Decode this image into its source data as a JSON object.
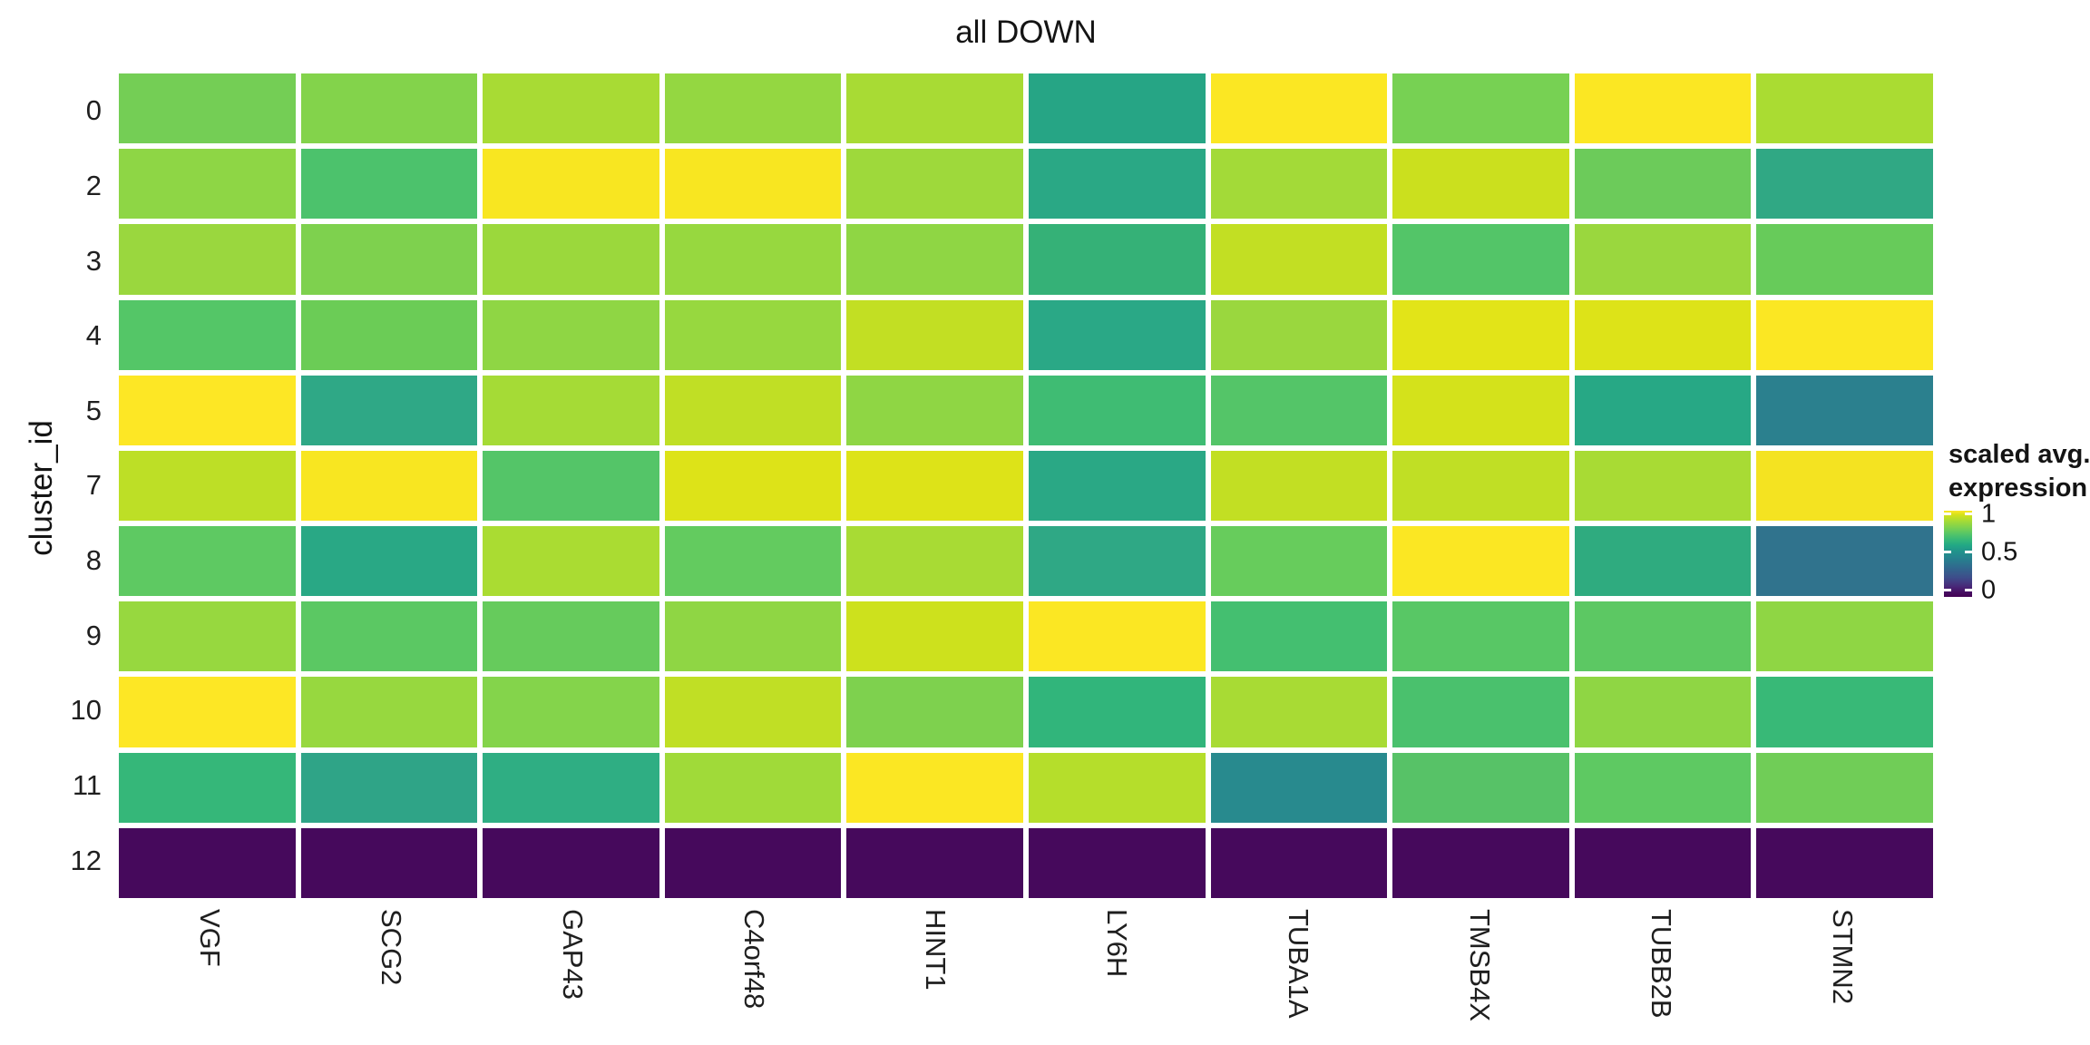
{
  "chart_data": {
    "type": "heatmap",
    "title": "all DOWN",
    "xlabel": "",
    "ylabel": "cluster_id",
    "x_tick_labels": [
      "VGF",
      "SCG2",
      "GAP43",
      "C4orf48",
      "HINT1",
      "LY6H",
      "TUBA1A",
      "TMSB4X",
      "TUBB2B",
      "STMN2"
    ],
    "y_tick_labels": [
      "0",
      "2",
      "3",
      "4",
      "5",
      "7",
      "8",
      "9",
      "10",
      "11",
      "12"
    ],
    "legend": {
      "title_line1": "scaled avg.",
      "title_line2": "expression",
      "tick_labels": [
        "1",
        "0.5",
        "0"
      ],
      "colormap": "viridis",
      "range": [
        0,
        1
      ],
      "position": "right"
    },
    "values": [
      [
        0.78,
        0.8,
        0.86,
        0.83,
        0.86,
        0.57,
        1.0,
        0.79,
        1.0,
        0.87
      ],
      [
        0.82,
        0.7,
        0.98,
        0.98,
        0.84,
        0.58,
        0.85,
        0.91,
        0.77,
        0.59
      ],
      [
        0.84,
        0.79,
        0.84,
        0.83,
        0.82,
        0.63,
        0.9,
        0.72,
        0.84,
        0.76
      ],
      [
        0.72,
        0.77,
        0.82,
        0.83,
        0.9,
        0.58,
        0.84,
        0.95,
        0.94,
        1.0
      ],
      [
        1.0,
        0.58,
        0.86,
        0.9,
        0.82,
        0.66,
        0.72,
        0.92,
        0.57,
        0.44
      ],
      [
        0.89,
        0.98,
        0.72,
        0.94,
        0.94,
        0.58,
        0.9,
        0.9,
        0.86,
        0.97
      ],
      [
        0.75,
        0.57,
        0.86,
        0.76,
        0.86,
        0.59,
        0.77,
        1.0,
        0.6,
        0.41
      ],
      [
        0.83,
        0.74,
        0.76,
        0.82,
        0.92,
        1.0,
        0.68,
        0.73,
        0.74,
        0.82
      ],
      [
        1.0,
        0.83,
        0.81,
        0.9,
        0.79,
        0.62,
        0.86,
        0.7,
        0.82,
        0.64
      ],
      [
        0.64,
        0.55,
        0.59,
        0.85,
        1.0,
        0.88,
        0.47,
        0.72,
        0.75,
        0.77
      ],
      [
        0.0,
        0.0,
        0.0,
        0.0,
        0.0,
        0.0,
        0.0,
        0.0,
        0.0,
        0.0
      ]
    ],
    "cell_colors": [
      [
        "#74ce55",
        "#83d34b",
        "#a8db34",
        "#94d741",
        "#a8db34",
        "#26a585",
        "#fbe723",
        "#77d153",
        "#fbe723",
        "#aadc32"
      ],
      [
        "#8ed645",
        "#4cc26c",
        "#f8e621",
        "#f8e621",
        "#9ed93b",
        "#2aa885",
        "#a3da38",
        "#cbe01e",
        "#6ccb5a",
        "#30a884"
      ],
      [
        "#9ad73e",
        "#7ed14e",
        "#9bd83c",
        "#97d83f",
        "#8fd644",
        "#35b177",
        "#c2df23",
        "#53c568",
        "#9ad73e",
        "#67cb5a"
      ],
      [
        "#54c667",
        "#6bcc56",
        "#8fd644",
        "#97d83f",
        "#c2df23",
        "#2aa886",
        "#9ad73e",
        "#e2e418",
        "#dde318",
        "#fbe723"
      ],
      [
        "#fde725",
        "#2fa886",
        "#a5db36",
        "#c0df25",
        "#8fd644",
        "#3fbc73",
        "#54c568",
        "#d4e21b",
        "#27a885",
        "#2b808e"
      ],
      [
        "#bddf26",
        "#f8e621",
        "#54c568",
        "#dde318",
        "#dde318",
        "#2aa885",
        "#c2df23",
        "#c0df25",
        "#a8db34",
        "#f4e321"
      ],
      [
        "#5ec962",
        "#29a885",
        "#aadc32",
        "#63cb5f",
        "#a8db34",
        "#2fa885",
        "#67cc5c",
        "#fbe723",
        "#2fab7f",
        "#30738d"
      ],
      [
        "#97d83f",
        "#5bc863",
        "#66cb5c",
        "#8fd644",
        "#cde11d",
        "#fbe723",
        "#44bf70",
        "#58c765",
        "#5cc863",
        "#8fd644"
      ],
      [
        "#fde725",
        "#97d83f",
        "#84d44b",
        "#c0df25",
        "#7ed14e",
        "#31b57b",
        "#a8db34",
        "#4ac16d",
        "#8fd644",
        "#38b977"
      ],
      [
        "#35b779",
        "#2fa487",
        "#2fae83",
        "#a0da39",
        "#fbe723",
        "#b5de2b",
        "#288a8e",
        "#57c267",
        "#5ec962",
        "#70cd57"
      ],
      [
        "#46095c",
        "#46095c",
        "#46095c",
        "#46095c",
        "#46095c",
        "#46095c",
        "#46095c",
        "#46095c",
        "#46095c",
        "#46095c"
      ]
    ]
  }
}
